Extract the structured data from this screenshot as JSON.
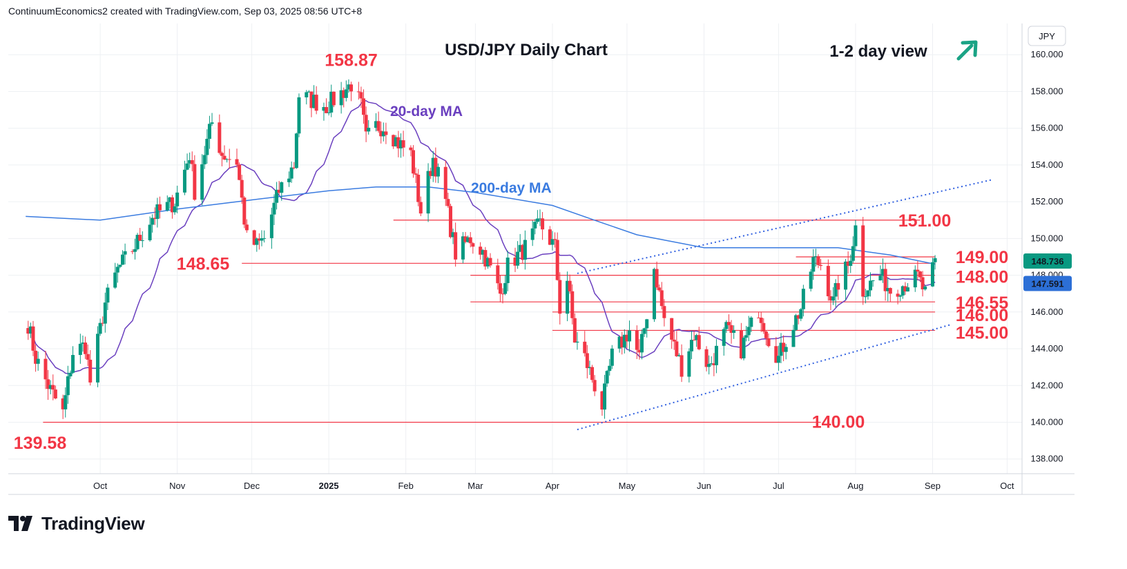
{
  "header": {
    "attribution": "ContinuumEconomics2 created with TradingView.com, Sep 03, 2025 08:56 UTC+8"
  },
  "brand": {
    "name": "TradingView"
  },
  "colors": {
    "up": "#089981",
    "down": "#f23645",
    "ma20": "#6a3fbf",
    "ma200": "#3a7be0",
    "levels": "#f23645",
    "channel": "#2f5fe0",
    "price_badge": "#089981",
    "ma_badge": "#2c6fd6",
    "arrow": "#1aa385"
  },
  "chart_data": {
    "type": "candlestick",
    "title": "USD/JPY Daily Chart",
    "view_label": "1-2 day view",
    "view_arrow": "up-right-arrow-icon",
    "currency": "JPY",
    "y_ticks": [
      "138.000",
      "140.000",
      "142.000",
      "144.000",
      "146.000",
      "148.000",
      "150.000",
      "152.000",
      "154.000",
      "156.000",
      "158.000",
      "160.000"
    ],
    "y_tick_values": [
      138,
      140,
      142,
      144,
      146,
      148,
      150,
      152,
      154,
      156,
      158,
      160
    ],
    "ylim": [
      137.2,
      161.7
    ],
    "x_ticks": [
      "Oct",
      "Nov",
      "Dec",
      "2025",
      "Feb",
      "Mar",
      "Apr",
      "May",
      "Jun",
      "Jul",
      "Aug",
      "Sep",
      "Oct"
    ],
    "x_tick_dates": [
      "2024-10-01",
      "2024-11-01",
      "2024-12-01",
      "2025-01-01",
      "2025-02-01",
      "2025-03-01",
      "2025-04-01",
      "2025-05-01",
      "2025-06-01",
      "2025-07-01",
      "2025-08-01",
      "2025-09-01",
      "2025-10-01"
    ],
    "last_price": "148.736",
    "ma20_price": "147.591",
    "indicators": [
      {
        "name": "20-day MA",
        "period": 20
      },
      {
        "name": "200-day MA",
        "period": 200
      }
    ],
    "price_labels": [
      {
        "text": "158.87",
        "value": 158.87,
        "date": "2025-01-10"
      },
      {
        "text": "139.58",
        "value": 139.58,
        "date": "2024-09-16"
      }
    ],
    "levels": [
      {
        "text": "151.00",
        "value": 151.0,
        "from": "2025-01-27",
        "to": "2025-08-27"
      },
      {
        "text": "149.00",
        "value": 149.0,
        "from": "2025-07-08",
        "to": "2025-09-02"
      },
      {
        "text": "148.65",
        "value": 148.65,
        "from": "2024-11-27",
        "to": "2025-09-02"
      },
      {
        "text": "148.00",
        "value": 148.0,
        "from": "2025-02-27",
        "to": "2025-09-02"
      },
      {
        "text": "146.55",
        "value": 146.55,
        "from": "2025-02-27",
        "to": "2025-09-02"
      },
      {
        "text": "146.00",
        "value": 146.0,
        "from": "2025-04-01",
        "to": "2025-09-02"
      },
      {
        "text": "145.00",
        "value": 145.0,
        "from": "2025-04-01",
        "to": "2025-09-02"
      },
      {
        "text": "140.00",
        "value": 140.0,
        "from": "2024-09-08",
        "to": "2025-07-18"
      }
    ],
    "channel": [
      {
        "from_date": "2025-04-11",
        "from": 148.1,
        "to_date": "2025-09-25",
        "to": 153.2
      },
      {
        "from_date": "2025-04-11",
        "from": 139.6,
        "to_date": "2025-09-08",
        "to": 145.3
      }
    ],
    "ohlc_anchors": [
      [
        "2024-09-01",
        146.0
      ],
      [
        "2024-09-05",
        143.5
      ],
      [
        "2024-09-10",
        142.0
      ],
      [
        "2024-09-16",
        140.5
      ],
      [
        "2024-09-20",
        143.8
      ],
      [
        "2024-09-25",
        144.2
      ],
      [
        "2024-09-27",
        142.2
      ],
      [
        "2024-10-03",
        146.5
      ],
      [
        "2024-10-08",
        148.3
      ],
      [
        "2024-10-15",
        149.6
      ],
      [
        "2024-10-22",
        151.2
      ],
      [
        "2024-10-31",
        152.0
      ],
      [
        "2024-11-06",
        154.6
      ],
      [
        "2024-11-08",
        152.6
      ],
      [
        "2024-11-15",
        156.3
      ],
      [
        "2024-11-19",
        154.6
      ],
      [
        "2024-11-25",
        154.2
      ],
      [
        "2024-11-29",
        150.0
      ],
      [
        "2024-12-03",
        149.6
      ],
      [
        "2024-12-06",
        150.0
      ],
      [
        "2024-12-12",
        152.6
      ],
      [
        "2024-12-18",
        154.0
      ],
      [
        "2024-12-20",
        157.8
      ],
      [
        "2024-12-31",
        157.2
      ],
      [
        "2025-01-10",
        158.4
      ],
      [
        "2025-01-14",
        157.2
      ],
      [
        "2025-01-16",
        155.4
      ],
      [
        "2025-01-20",
        156.1
      ],
      [
        "2025-01-24",
        156.1
      ],
      [
        "2025-01-29",
        155.2
      ],
      [
        "2025-02-03",
        154.6
      ],
      [
        "2025-02-07",
        151.5
      ],
      [
        "2025-02-12",
        154.4
      ],
      [
        "2025-02-17",
        152.0
      ],
      [
        "2025-02-21",
        149.2
      ],
      [
        "2025-02-27",
        150.0
      ],
      [
        "2025-03-04",
        149.3
      ],
      [
        "2025-03-11",
        147.0
      ],
      [
        "2025-03-14",
        148.5
      ],
      [
        "2025-03-21",
        149.5
      ],
      [
        "2025-03-27",
        150.8
      ],
      [
        "2025-04-02",
        149.5
      ],
      [
        "2025-04-04",
        146.2
      ],
      [
        "2025-04-07",
        147.8
      ],
      [
        "2025-04-10",
        144.5
      ],
      [
        "2025-04-14",
        143.5
      ],
      [
        "2025-04-21",
        140.9
      ],
      [
        "2025-04-25",
        143.6
      ],
      [
        "2025-05-02",
        145.0
      ],
      [
        "2025-05-06",
        143.5
      ],
      [
        "2025-05-12",
        148.4
      ],
      [
        "2025-05-16",
        145.6
      ],
      [
        "2025-05-23",
        143.0
      ],
      [
        "2025-05-28",
        144.8
      ],
      [
        "2025-06-03",
        143.0
      ],
      [
        "2025-06-10",
        145.0
      ],
      [
        "2025-06-16",
        144.0
      ],
      [
        "2025-06-23",
        146.2
      ],
      [
        "2025-06-27",
        144.6
      ],
      [
        "2025-07-01",
        143.5
      ],
      [
        "2025-07-04",
        144.5
      ],
      [
        "2025-07-10",
        146.2
      ],
      [
        "2025-07-15",
        148.8
      ],
      [
        "2025-07-18",
        148.6
      ],
      [
        "2025-07-23",
        146.5
      ],
      [
        "2025-07-25",
        147.6
      ],
      [
        "2025-07-29",
        148.5
      ],
      [
        "2025-08-01",
        150.6
      ],
      [
        "2025-08-04",
        147.2
      ],
      [
        "2025-08-11",
        148.0
      ],
      [
        "2025-08-15",
        147.2
      ],
      [
        "2025-08-20",
        147.5
      ],
      [
        "2025-08-26",
        147.9
      ],
      [
        "2025-08-29",
        147.0
      ],
      [
        "2025-09-02",
        148.6
      ]
    ],
    "ma200_anchors": [
      [
        "2024-09-01",
        151.2
      ],
      [
        "2024-10-01",
        151.0
      ],
      [
        "2024-11-01",
        151.6
      ],
      [
        "2024-12-01",
        152.1
      ],
      [
        "2025-01-01",
        152.6
      ],
      [
        "2025-01-20",
        152.8
      ],
      [
        "2025-02-10",
        152.8
      ],
      [
        "2025-03-01",
        152.5
      ],
      [
        "2025-04-01",
        151.8
      ],
      [
        "2025-04-20",
        150.9
      ],
      [
        "2025-05-05",
        150.2
      ],
      [
        "2025-06-01",
        149.5
      ],
      [
        "2025-07-01",
        149.5
      ],
      [
        "2025-07-25",
        149.5
      ],
      [
        "2025-08-15",
        149.1
      ],
      [
        "2025-09-02",
        148.6
      ]
    ]
  }
}
